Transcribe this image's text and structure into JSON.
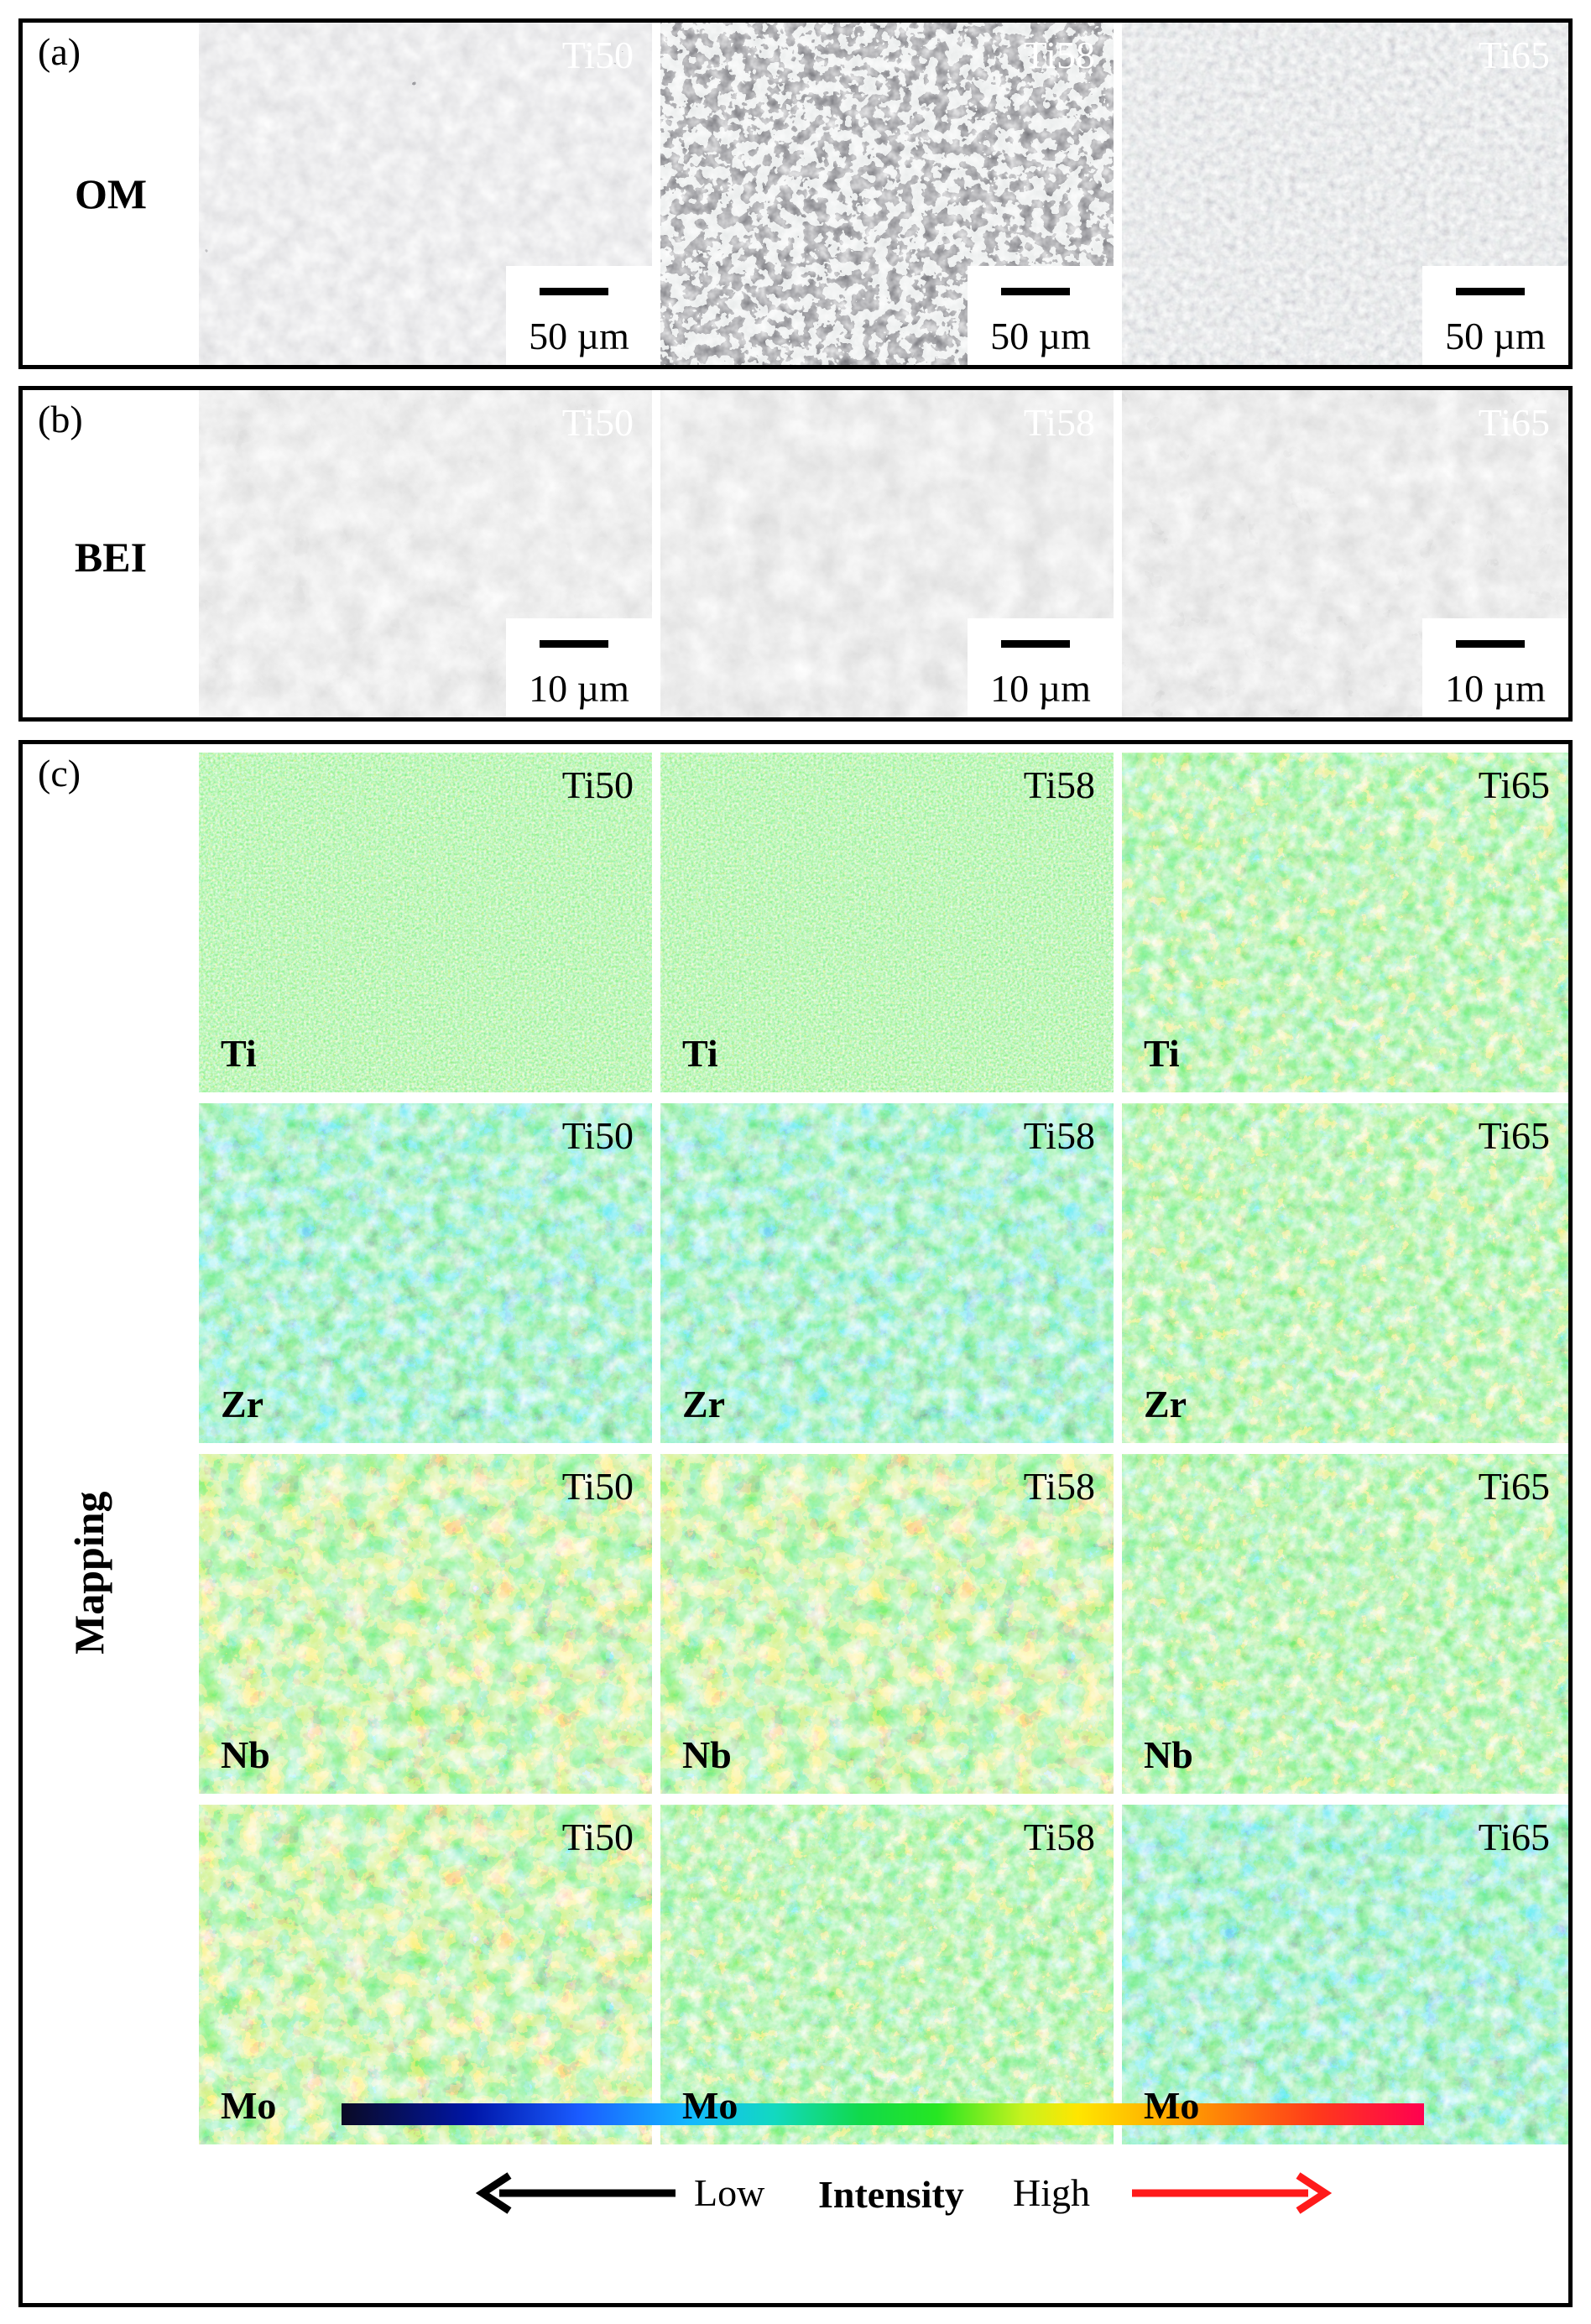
{
  "panels": {
    "a": {
      "letter": "(a)",
      "row_label": "OM",
      "scale_text": "50 µm"
    },
    "b": {
      "letter": "(b)",
      "row_label": "BEI",
      "scale_text": "10 µm"
    },
    "c": {
      "letter": "(c)",
      "row_label": "Mapping"
    }
  },
  "alloys": [
    "Ti50",
    "Ti58",
    "Ti65"
  ],
  "elements": [
    "Ti",
    "Zr",
    "Nb",
    "Mo"
  ],
  "colorbar": {
    "low": "Low",
    "title": "Intensity",
    "high": "High"
  },
  "colors": {
    "om_background": "#b8b8b8",
    "bei_background": "#b4b4b4",
    "map_green": "#22d63a",
    "map_blue": "#1e6fe0",
    "map_orange": "#ff9a1c",
    "arrow_low": "#000000",
    "arrow_high": "#ff1a1a"
  },
  "icons": {
    "low_arrow": "arrow-left-icon",
    "high_arrow": "arrow-right-icon"
  }
}
